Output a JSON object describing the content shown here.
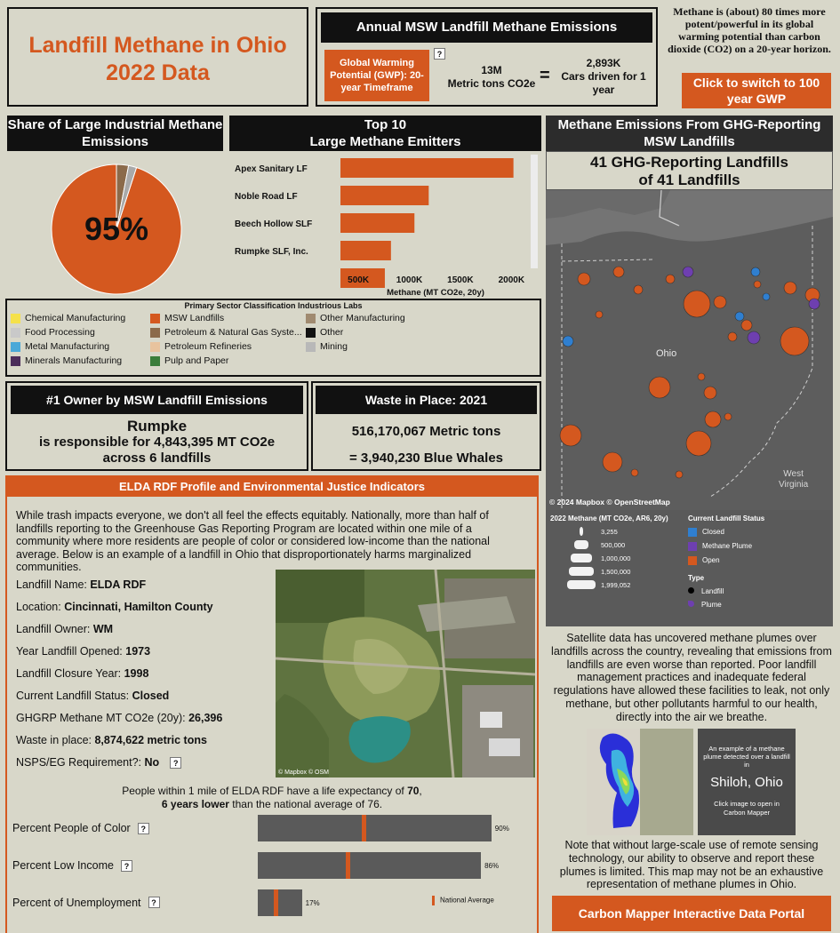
{
  "title": {
    "line1": "Landfill Methane in Ohio",
    "line2": "2022 Data"
  },
  "annual": {
    "header": "Annual MSW Landfill Methane Emissions",
    "gwp_label": "Global Warming Potential (GWP): 20-year Timeframe",
    "help": "?",
    "value_line1": "13M",
    "value_line2": "Metric tons CO2e",
    "equals": "=",
    "cars_line1": "2,893K",
    "cars_line2": "Cars driven for 1 year"
  },
  "gwp_note": "Methane is (about) 80 times more potent/powerful in its global warming potential than carbon dioxide (CO2) on a 20-year horizon.",
  "switch_button": "Click to switch to 100 year GWP",
  "share": {
    "header": "Share of Large Industrial Methane Emissions",
    "pct": "95%",
    "chart_data": {
      "type": "pie",
      "slices": [
        {
          "label": "MSW Landfills",
          "value": 95,
          "color": "#d4581f"
        },
        {
          "label": "Other",
          "value": 3,
          "color": "#8b6a4a"
        },
        {
          "label": "Other",
          "value": 2,
          "color": "#a9a9a9"
        }
      ]
    }
  },
  "top10": {
    "header_line1": "Top 10",
    "header_line2": "Large Methane Emitters",
    "chart_data": {
      "type": "bar",
      "orientation": "horizontal",
      "categories": [
        "Apex Sanitary LF",
        "Noble Road LF",
        "Beech Hollow SLF",
        "Rumpke SLF, Inc.",
        ""
      ],
      "values": [
        2020000,
        1190000,
        1050000,
        820000,
        760000
      ],
      "xlim": [
        325000,
        2180000
      ],
      "xticks": [
        "500K",
        "1000K",
        "1500K",
        "2000K"
      ],
      "xtick_values": [
        500000,
        1000000,
        1500000,
        2000000
      ],
      "xlabel": "Methane (MT CO2e, 20y)",
      "color": "#d4581f"
    }
  },
  "sector_legend": {
    "title": "Primary Sector Classification Industrious Labs",
    "items": [
      {
        "label": "Chemical Manufacturing",
        "color": "#f5e14a"
      },
      {
        "label": "Food Processing",
        "color": "#c9c9c9"
      },
      {
        "label": "Metal Manufacturing",
        "color": "#4aa8d8"
      },
      {
        "label": "Minerals Manufacturing",
        "color": "#4b2d5a"
      },
      {
        "label": "MSW Landfills",
        "color": "#d4581f"
      },
      {
        "label": "Petroleum & Natural Gas Syste...",
        "color": "#8b6a4a"
      },
      {
        "label": "Petroleum Refineries",
        "color": "#e8c39e"
      },
      {
        "label": "Pulp and Paper",
        "color": "#3a7d3a"
      },
      {
        "label": "Other Manufacturing",
        "color": "#a08a70"
      },
      {
        "label": "Other",
        "color": "#111111"
      },
      {
        "label": "Mining",
        "color": "#b8b8b8"
      }
    ]
  },
  "owner": {
    "header": "#1 Owner by MSW Landfill Emissions",
    "name": "Rumpke",
    "line2": "is responsible for 4,843,395 MT CO2e",
    "line3": "across 6 landfills"
  },
  "waste": {
    "header": "Waste in Place: 2021",
    "line1": "516,170,067 Metric tons",
    "line2": "= 3,940,230 Blue Whales"
  },
  "map": {
    "header": "Methane Emissions From GHG-Reporting MSW Landfills",
    "subtitle_line1": "41 GHG-Reporting Landfills",
    "subtitle_line2": "of 41 Landfills",
    "state_label": "Ohio",
    "wv_label_1": "West",
    "wv_label_2": "Virginia",
    "attribution": "© 2024 Mapbox  © OpenStreetMap",
    "size_title": "2022 Methane (MT CO2e, AR6, 20y)",
    "sizes": [
      "3,255",
      "500,000",
      "1,000,000",
      "1,500,000",
      "1,999,052"
    ],
    "status_title": "Current Landfill Status",
    "status": [
      {
        "label": "Closed",
        "color": "#2f7fd0"
      },
      {
        "label": "Methane Plume",
        "color": "#6e3fb0"
      },
      {
        "label": "Open",
        "color": "#d4581f"
      }
    ],
    "type_title": "Type",
    "types": [
      "Landfill",
      "Plume"
    ]
  },
  "elda": {
    "header": "ELDA RDF Profile and Environmental Justice Indicators",
    "intro": "While trash impacts everyone, we don't all feel the effects equitably. Nationally, more than half of landfills reporting to the Greenhouse Gas Reporting Program are located within one mile of a community where more residents are people of color or considered low-income than the national average. Below is an example of a landfill in Ohio that disproportionately harms marginalized communities.",
    "rows": [
      {
        "label": "Landfill Name: ",
        "value": "ELDA RDF"
      },
      {
        "label": "Location: ",
        "value": "Cincinnati, Hamilton County"
      },
      {
        "label": "Landfill Owner: ",
        "value": "WM"
      },
      {
        "label": "Year Landfill Opened: ",
        "value": "1973"
      },
      {
        "label": "Landfill Closure Year: ",
        "value": "1998"
      },
      {
        "label": "Current Landfill Status: ",
        "value": "Closed"
      },
      {
        "label": "GHGRP Methane MT CO2e (20y): ",
        "value": "26,396"
      },
      {
        "label": "Waste in place: ",
        "value": "8,874,622 metric tons"
      },
      {
        "label": "NSPS/EG Requirement?: ",
        "value": "No"
      }
    ],
    "image_attribution": "© Mapbox  © OSM",
    "life_line1": "People within 1 mile of ELDA RDF have a life expectancy of ",
    "life_value": "70",
    "life_line2_bold": "6 years lower",
    "life_line2_rest": " than the national average of 76.",
    "indicators": [
      {
        "label": "Percent People of Color",
        "value": 0.9,
        "value_text": "90%",
        "national": 0.4
      },
      {
        "label": "Percent Low Income",
        "value": 0.86,
        "value_text": "86%",
        "national": 0.34
      },
      {
        "label": "Percent of Unemployment",
        "value": 0.17,
        "value_text": "17%",
        "national": 0.06
      }
    ],
    "national_label": "National Average"
  },
  "satellite": {
    "text": "Satellite data has uncovered methane plumes over landfills across the country, revealing that emissions from landfills are even worse than reported. Poor landfill management practices and inadequate federal regulations have allowed these facilities to leak, not only methane, but other pollutants harmful to our health, directly into the air we breathe.",
    "card_small": "An example of a methane plume detected over a landfill in",
    "card_big": "Shiloh, Ohio",
    "card_foot": "Click image to open in Carbon Mapper",
    "note": "Note that without large-scale use of remote sensing technology, our ability to observe and report these plumes is limited. This map may not be an exhaustive representation of methane plumes in Ohio.",
    "portal_button": "Carbon Mapper Interactive Data Portal"
  }
}
